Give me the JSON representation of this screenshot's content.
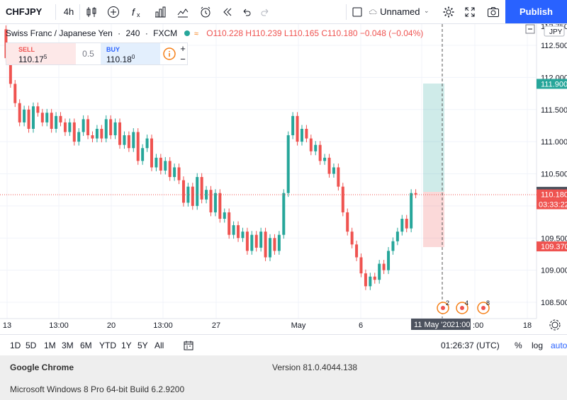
{
  "toolbar": {
    "symbol": "CHFJPY",
    "interval": "4h",
    "layout_name": "Unnamed",
    "publish_label": "Publish"
  },
  "legend": {
    "instrument": "Swiss Franc / Japanese Yen",
    "interval": "240",
    "exchange": "FXCM",
    "ohlc": "O110.228 H110.239 L110.165 C110.180 −0.048 (−0.04%)"
  },
  "trade": {
    "sell_label": "SELL",
    "sell_main": "110.17",
    "sell_sup": "5",
    "spread": "0.5",
    "buy_label": "BUY",
    "buy_main": "110.18",
    "buy_sup": "0"
  },
  "price_axis": {
    "currency": "JPY",
    "ticks": [
      "112.500",
      "112.000",
      "111.500",
      "111.000",
      "110.500",
      "110.000",
      "109.500",
      "109.000",
      "108.500"
    ],
    "top_clipped": "112.750"
  },
  "time_axis": {
    "ticks": [
      "13",
      "13:00",
      "20",
      "13:00",
      "27",
      "May",
      "6",
      "13",
      "13:00",
      "18"
    ],
    "crosshair_date": "11 May '20",
    "crosshair_time": "21:00"
  },
  "price_labels": {
    "target": "111.900",
    "crosshair": "110.220",
    "last": "110.180",
    "countdown": "03:33:22",
    "stop": "109.370"
  },
  "events": [
    "2",
    "4",
    "8"
  ],
  "bottom": {
    "ranges": [
      "1D",
      "5D",
      "1M",
      "3M",
      "6M",
      "YTD",
      "1Y",
      "5Y",
      "All"
    ],
    "clock": "01:26:37 (UTC)",
    "percent": "%",
    "log": "log",
    "auto": "auto"
  },
  "system_info": {
    "browser": "Google Chrome",
    "version": "Version 81.0.4044.138",
    "os": "Microsoft Windows 8 Pro 64-bit Build 6.2.9200"
  },
  "colors": {
    "up": "#26a69a",
    "down": "#ef5350",
    "accent": "#2962ff",
    "grid": "#f0f3fa"
  }
}
